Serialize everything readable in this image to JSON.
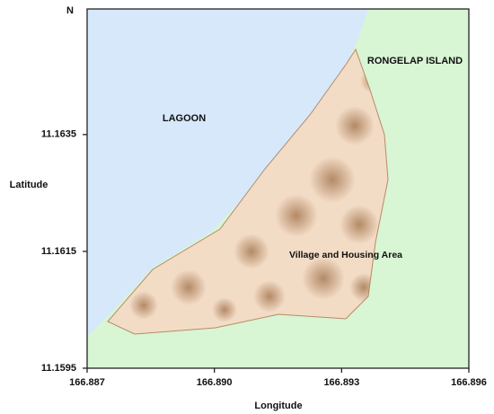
{
  "chart_data": {
    "type": "map",
    "annotations": [
      "N",
      "LAGOON",
      "RONGELAP ISLAND",
      "Village and Housing Area"
    ],
    "xlabel": "Longitude",
    "ylabel": "Latitude",
    "xlim": [
      166.887,
      166.896
    ],
    "xticks": [
      166.887,
      {
        "value": 166.89,
        "label": "166.890"
      },
      166.893,
      166.896
    ],
    "ylim": [
      11.1595,
      11.16565
    ],
    "yticks": [
      11.1595,
      11.1615,
      11.1635
    ]
  }
}
